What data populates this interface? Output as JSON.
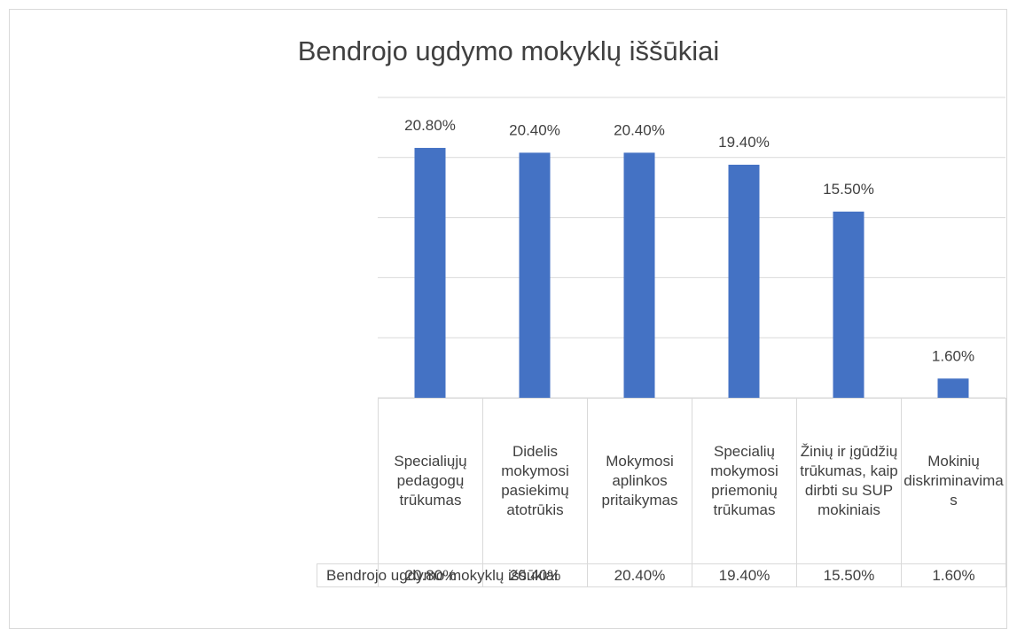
{
  "chart_data": {
    "type": "bar",
    "title": "Bendrojo ugdymo mokyklų iššūkiai",
    "categories": [
      "Specialiųjų pedagogų trūkumas",
      "Didelis mokymosi pasiekimų atotrūkis",
      "Mokymosi aplinkos pritaikymas",
      "Specialių mokymosi priemonių trūkumas",
      "Žinių ir įgūdžių trūkumas, kaip dirbti su SUP mokiniais",
      "Mokinių diskriminavimas"
    ],
    "series": [
      {
        "name": "Bendrojo ugdymo mokyklų iššūkiai",
        "color": "#4472c4",
        "values": [
          20.8,
          20.4,
          20.4,
          19.4,
          15.5,
          1.6
        ],
        "value_labels": [
          "20.80%",
          "20.40%",
          "20.40%",
          "19.40%",
          "15.50%",
          "1.60%"
        ]
      }
    ],
    "ylim": [
      0,
      25
    ],
    "yticks": [
      0,
      5,
      10,
      15,
      20,
      25
    ],
    "grid": true
  }
}
